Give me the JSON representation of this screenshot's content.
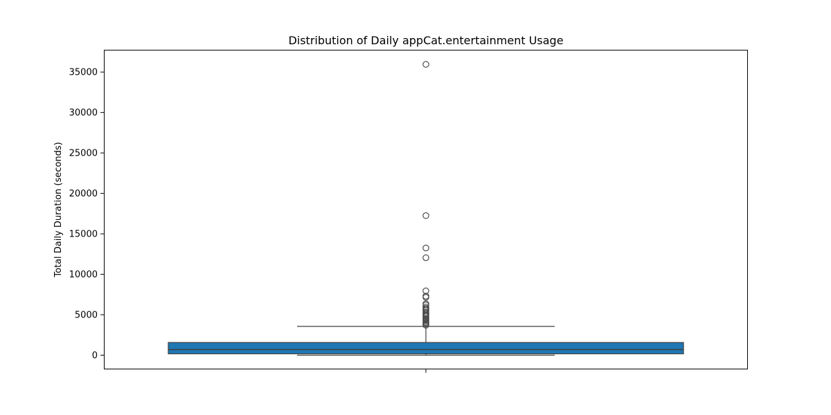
{
  "chart_data": {
    "type": "box",
    "title": "Distribution of Daily appCat.entertainment Usage",
    "xlabel": "",
    "ylabel": "Total Daily Duration (seconds)",
    "ylim": [
      -1750,
      37750
    ],
    "yticks": [
      0,
      5000,
      10000,
      15000,
      20000,
      25000,
      30000,
      35000
    ],
    "grid": false,
    "box": {
      "color": "#1f77b4",
      "min": 0,
      "q1": 170,
      "median": 700,
      "q3": 1570,
      "whisker_high": 3560,
      "outliers": [
        35950,
        17250,
        13250,
        12050,
        7950,
        7300,
        7150,
        6350,
        6200,
        5950,
        5800,
        5650,
        5500,
        5300,
        5100,
        4950,
        4800,
        4600,
        4450,
        4300,
        4150,
        4000,
        3850,
        3700
      ]
    }
  }
}
